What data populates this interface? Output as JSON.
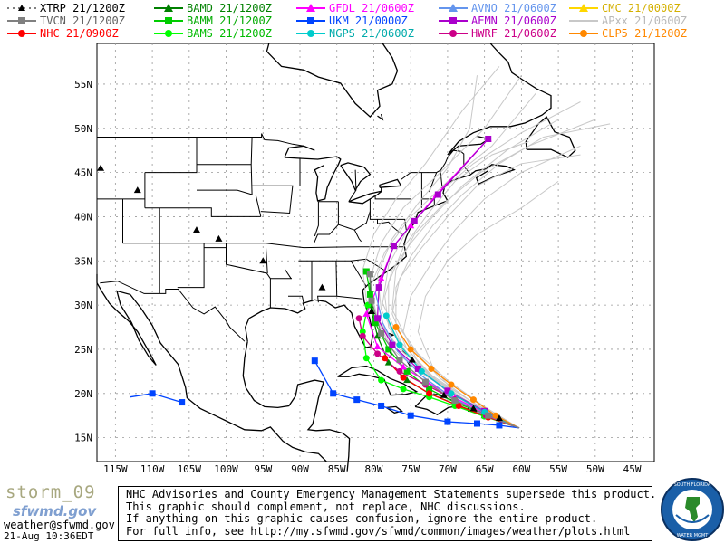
{
  "legend": [
    {
      "label": "XTRP  21/1200Z",
      "color": "#000000",
      "marker": "triangle",
      "line": "dotted"
    },
    {
      "label": "BAMD 21/1200Z",
      "color": "#008000",
      "marker": "triangle",
      "line": "solid"
    },
    {
      "label": "GFDL  21/0600Z",
      "color": "#ff00ff",
      "marker": "triangle",
      "line": "solid"
    },
    {
      "label": "AVNO 21/0600Z",
      "color": "#6495ed",
      "marker": "triangle",
      "line": "solid"
    },
    {
      "label": "CMC 21/0000Z",
      "color": "#ffd700",
      "marker": "triangle",
      "line": "solid"
    },
    {
      "label": "TVCN  21/1200Z",
      "color": "#808080",
      "marker": "square",
      "line": "solid"
    },
    {
      "label": "BAMM 21/1200Z",
      "color": "#00cc00",
      "marker": "square",
      "line": "solid"
    },
    {
      "label": "UKM   21/0000Z",
      "color": "#0044ff",
      "marker": "square",
      "line": "solid"
    },
    {
      "label": "AEMN 21/0600Z",
      "color": "#aa00cc",
      "marker": "square",
      "line": "solid"
    },
    {
      "label": "APxx 21/0600Z",
      "color": "#c8c8c8",
      "marker": "none",
      "line": "solid"
    },
    {
      "label": "NHC   21/0900Z",
      "color": "#ff0000",
      "marker": "circle",
      "line": "solid"
    },
    {
      "label": "BAMS 21/1200Z",
      "color": "#00ff00",
      "marker": "circle",
      "line": "solid"
    },
    {
      "label": "NGPS 21/0600Z",
      "color": "#00cccc",
      "marker": "circle",
      "line": "solid"
    },
    {
      "label": "HWRF 21/0600Z",
      "color": "#cc0088",
      "marker": "circle",
      "line": "solid"
    },
    {
      "label": "CLP5 21/1200Z",
      "color": "#ff8800",
      "marker": "circle",
      "line": "solid"
    }
  ],
  "map": {
    "lon_labels": [
      "115W",
      "110W",
      "105W",
      "100W",
      "95W",
      "90W",
      "85W",
      "80W",
      "75W",
      "70W",
      "65W",
      "60W",
      "55W",
      "50W",
      "45W"
    ],
    "lat_labels": [
      "55N",
      "50N",
      "45N",
      "40N",
      "35N",
      "30N",
      "25N",
      "20N",
      "15N"
    ],
    "extent": {
      "lon_min": -117.5,
      "lon_max": -42.0,
      "lat_min": 12.3,
      "lat_max": 59.6
    }
  },
  "footer": {
    "storm_id": "storm_09",
    "logo_text": "sfwmd.gov",
    "contact": "weather@sfwmd.gov",
    "datetime": "21-Aug 10:36EDT",
    "disclaimer": [
      "NHC Advisories and County Emergency Management Statements supersede this product.",
      "This graphic should complement, not replace, NHC discussions.",
      "If anything on this graphic causes confusion, ignore the entire product.",
      "For full info, see  http://my.sfwmd.gov/sfwmd/common/images/weather/plots.html"
    ],
    "seal_text": "SOUTH FLORIDA WATER MANAGEMENT DISTRICT"
  }
}
